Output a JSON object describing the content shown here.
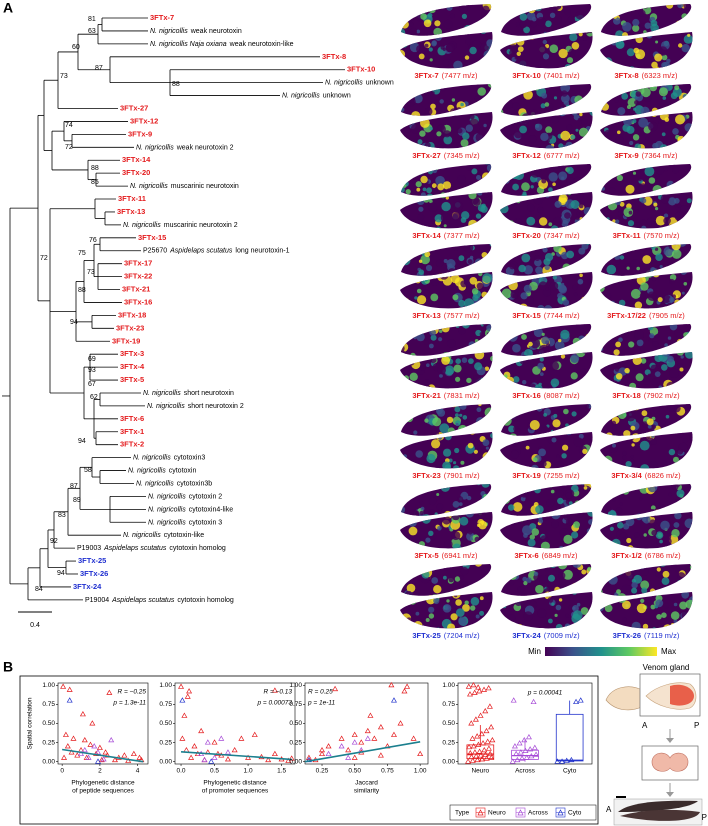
{
  "panel_labels": [
    "A",
    "B"
  ],
  "tree": {
    "scale_bar": 0.4,
    "support_values": [
      81,
      63,
      60,
      73,
      87,
      88,
      74,
      72,
      88,
      85,
      72,
      76,
      75,
      73,
      88,
      94,
      69,
      93,
      67,
      62,
      94,
      58,
      87,
      89,
      83,
      92,
      94,
      84
    ],
    "leaves": [
      {
        "name": "3FTx-7",
        "color": "#e41a1c"
      },
      {
        "species": "N. nigricollis",
        "name": "weak neurotoxin"
      },
      {
        "species": "N. nigricollis Naja oxiana",
        "name": "weak neurotoxin-like"
      },
      {
        "name": "3FTx-8",
        "color": "#e41a1c"
      },
      {
        "name": "3FTx-10",
        "color": "#e41a1c"
      },
      {
        "species": "N. nigricollis",
        "name": "unknown"
      },
      {
        "species": "N. nigricollis",
        "name": "unknown"
      },
      {
        "name": "3FTx-27",
        "color": "#e41a1c"
      },
      {
        "name": "3FTx-12",
        "color": "#e41a1c"
      },
      {
        "name": "3FTx-9",
        "color": "#e41a1c"
      },
      {
        "species": "N. nigricollis",
        "name": "weak neurotoxin 2"
      },
      {
        "name": "3FTx-14",
        "color": "#e41a1c"
      },
      {
        "name": "3FTx-20",
        "color": "#e41a1c"
      },
      {
        "species": "N. nigricollis",
        "name": "muscarinic neurotoxin"
      },
      {
        "name": "3FTx-11",
        "color": "#e41a1c"
      },
      {
        "name": "3FTx-13",
        "color": "#e41a1c"
      },
      {
        "species": "N. nigricollis",
        "name": "muscarinic neurotoxin 2"
      },
      {
        "name": "3FTx-15",
        "color": "#e41a1c"
      },
      {
        "id": "P25670",
        "species": "Aspidelaps scutatus",
        "name": "long neurotoxin-1"
      },
      {
        "name": "3FTx-17",
        "color": "#e41a1c"
      },
      {
        "name": "3FTx-22",
        "color": "#e41a1c"
      },
      {
        "name": "3FTx-21",
        "color": "#e41a1c"
      },
      {
        "name": "3FTx-16",
        "color": "#e41a1c"
      },
      {
        "name": "3FTx-18",
        "color": "#e41a1c"
      },
      {
        "name": "3FTx-23",
        "color": "#e41a1c"
      },
      {
        "name": "3FTx-19",
        "color": "#e41a1c"
      },
      {
        "name": "3FTx-3",
        "color": "#e41a1c"
      },
      {
        "name": "3FTx-4",
        "color": "#e41a1c"
      },
      {
        "name": "3FTx-5",
        "color": "#e41a1c"
      },
      {
        "species": "N. nigricollis",
        "name": "short neurotoxin"
      },
      {
        "species": "N. nigricollis",
        "name": "short neurotoxin 2"
      },
      {
        "name": "3FTx-6",
        "color": "#e41a1c"
      },
      {
        "name": "3FTx-1",
        "color": "#e41a1c"
      },
      {
        "name": "3FTx-2",
        "color": "#e41a1c"
      },
      {
        "species": "N. nigricollis",
        "name": "cytotoxin3"
      },
      {
        "species": "N. nigricollis",
        "name": "cytotoxin"
      },
      {
        "species": "N. nigricollis",
        "name": "cytotoxin3b"
      },
      {
        "species": "N. nigricollis",
        "name": "cytotoxin 2"
      },
      {
        "species": "N. nigricollis",
        "name": "cytotoxin4-like"
      },
      {
        "species": "N. nigricollis",
        "name": "cytotoxin 3"
      },
      {
        "species": "N. nigricollis",
        "name": "cytotoxin-like"
      },
      {
        "id": "P19003",
        "species": "Aspidelaps scutatus",
        "name": "cytotoxin homolog"
      },
      {
        "name": "3FTx-25",
        "color": "#1f2fd0"
      },
      {
        "name": "3FTx-26",
        "color": "#1f2fd0"
      },
      {
        "name": "3FTx-24",
        "color": "#1f2fd0"
      },
      {
        "id": "P19004",
        "species": "Aspidelaps scutatus",
        "name": "cytotoxin homolog"
      }
    ]
  },
  "maps": [
    {
      "name": "3FTx-7",
      "label": "(7477 m/z)",
      "color": "#e41a1c"
    },
    {
      "name": "3FTx-10",
      "label": "(7401 m/z)",
      "color": "#e41a1c"
    },
    {
      "name": "3FTx-8",
      "label": "(6323 m/z)",
      "color": "#e41a1c"
    },
    {
      "name": "3FTx-27",
      "label": "(7345 m/z)",
      "color": "#e41a1c"
    },
    {
      "name": "3FTx-12",
      "label": "(6777 m/z)",
      "color": "#e41a1c"
    },
    {
      "name": "3FTx-9",
      "label": "(7364 m/z)",
      "color": "#e41a1c"
    },
    {
      "name": "3FTx-14",
      "label": "(7377 m/z)",
      "color": "#e41a1c"
    },
    {
      "name": "3FTx-20",
      "label": "(7347 m/z)",
      "color": "#e41a1c"
    },
    {
      "name": "3FTx-11",
      "label": "(7570 m/z)",
      "color": "#e41a1c"
    },
    {
      "name": "3FTx-13",
      "label": "(7577 m/z)",
      "color": "#e41a1c"
    },
    {
      "name": "3FTx-15",
      "label": "(7744 m/z)",
      "color": "#e41a1c"
    },
    {
      "name": "3FTx-17/22",
      "label": "(7905 m/z)",
      "color": "#e41a1c"
    },
    {
      "name": "3FTx-21",
      "label": "(7831 m/z)",
      "color": "#e41a1c"
    },
    {
      "name": "3FTx-16",
      "label": "(8087 m/z)",
      "color": "#e41a1c"
    },
    {
      "name": "3FTx-18",
      "label": "(7902 m/z)",
      "color": "#e41a1c"
    },
    {
      "name": "3FTx-23",
      "label": "(7901 m/z)",
      "color": "#e41a1c"
    },
    {
      "name": "3FTx-19",
      "label": "(7255 m/z)",
      "color": "#e41a1c"
    },
    {
      "name": "3FTx-3/4",
      "label": "(6826 m/z)",
      "color": "#e41a1c"
    },
    {
      "name": "3FTx-5",
      "label": "(6941 m/z)",
      "color": "#e41a1c"
    },
    {
      "name": "3FTx-6",
      "label": "(6849 m/z)",
      "color": "#e41a1c"
    },
    {
      "name": "3FTx-1/2",
      "label": "(6786 m/z)",
      "color": "#e41a1c"
    },
    {
      "name": "3FTx-25",
      "label": "(7204 m/z)",
      "color": "#1f2fd0"
    },
    {
      "name": "3FTx-24",
      "label": "(7009 m/z)",
      "color": "#1f2fd0"
    },
    {
      "name": "3FTx-26",
      "label": "(7119 m/z)",
      "color": "#1f2fd0"
    }
  ],
  "colorbar": {
    "min_label": "Min",
    "max_label": "Max",
    "colors": [
      "#440154",
      "#3b528b",
      "#21918c",
      "#5ec962",
      "#fde725"
    ]
  },
  "inset": {
    "title": "Venom gland",
    "labels": [
      "A",
      "P",
      "A",
      "P"
    ]
  },
  "chart_data": [
    {
      "type": "scatter",
      "x_label": [
        "Phylogenetic distance",
        "of peptide sequences"
      ],
      "y_label": "Spatial correlation",
      "annotations": [
        "R = −0.25",
        "p = 1.3e-11"
      ],
      "xlim": [
        -0.22,
        4.55
      ],
      "ylim": [
        -0.03,
        1.03
      ],
      "xticks": [
        0,
        2,
        4
      ],
      "yticks": [
        {
          "value": 0,
          "label": "0.00"
        },
        0.25,
        {
          "value": 0.5,
          "label": "0.50"
        },
        0.75,
        {
          "value": 1,
          "label": "1.00"
        }
      ],
      "series": [
        {
          "color": "#e41a1c",
          "x": [
            0.05,
            0.1,
            0.2,
            0.3,
            0.5,
            0.6,
            0.8,
            1.0,
            1.2,
            1.3,
            1.5,
            1.6,
            1.8,
            2.0,
            2.1,
            2.3,
            2.5,
            2.8,
            3.0,
            3.3,
            3.5,
            3.8,
            4.1,
            4.2,
            0.4,
            1.1,
            2.4
          ],
          "y": [
            0.98,
            0.05,
            0.35,
            0.2,
            0.12,
            0.3,
            0.08,
            0.15,
            0.28,
            0.05,
            0.22,
            0.5,
            0.1,
            0.18,
            0.02,
            0.12,
            0.9,
            0.02,
            0.05,
            0.08,
            0.01,
            0.1,
            0.05,
            0.02,
            0.94,
            0.62,
            0.08
          ]
        },
        {
          "color": "#a64ad6",
          "x": [
            1.0,
            1.4,
            1.7,
            1.9,
            2.2,
            2.6,
            1.2
          ],
          "y": [
            0.1,
            0.05,
            0.2,
            0.12,
            0.03,
            0.28,
            0.15
          ]
        },
        {
          "color": "#2233cc",
          "x": [
            0.4,
            1.9
          ],
          "y": [
            0.8,
            0.0
          ]
        }
      ],
      "trend": {
        "color": "#1b7f8e",
        "x": [
          0,
          4.3
        ],
        "y": [
          0.16,
          0
        ]
      }
    },
    {
      "type": "scatter",
      "x_label": [
        "Phylogenetic distance",
        "of promoter sequences"
      ],
      "annotations": [
        "R = −0.13",
        "p = 0.00073"
      ],
      "xlim": [
        -0.09,
        1.7
      ],
      "ylim": [
        -0.03,
        1.03
      ],
      "xticks": [
        {
          "value": 0,
          "label": "0.0"
        },
        0.5,
        {
          "value": 1,
          "label": "1.0"
        },
        1.5
      ],
      "yticks": [
        {
          "value": 0,
          "label": "0.00"
        },
        0.25,
        {
          "value": 0.5,
          "label": "0.50"
        },
        0.75,
        {
          "value": 1,
          "label": "1.00"
        }
      ],
      "series": [
        {
          "color": "#e41a1c",
          "x": [
            0.0,
            0.02,
            0.05,
            0.08,
            0.1,
            0.15,
            0.2,
            0.25,
            0.3,
            0.35,
            0.4,
            0.5,
            0.55,
            0.6,
            0.7,
            0.8,
            0.9,
            1.0,
            1.1,
            1.2,
            1.3,
            1.4,
            1.5,
            1.6,
            1.65,
            0.12,
            1.4
          ],
          "y": [
            0.98,
            0.3,
            0.6,
            0.15,
            0.85,
            0.05,
            0.2,
            0.1,
            0.4,
            0.02,
            0.12,
            0.25,
            0.1,
            0.08,
            0.03,
            0.15,
            0.3,
            0.05,
            0.35,
            0.06,
            0.02,
            0.1,
            0.03,
            0.01,
            0.04,
            0.92,
            0.93
          ]
        },
        {
          "color": "#a64ad6",
          "x": [
            0.3,
            0.4,
            0.5,
            0.6,
            0.7,
            0.35
          ],
          "y": [
            0.1,
            0.25,
            0.05,
            0.3,
            0.12,
            0.02
          ]
        },
        {
          "color": "#2233cc",
          "x": [
            0.02,
            0.45
          ],
          "y": [
            0.8,
            0.0
          ]
        }
      ],
      "trend": {
        "color": "#1b7f8e",
        "x": [
          0,
          1.65
        ],
        "y": [
          0.13,
          0.03
        ]
      }
    },
    {
      "type": "scatter",
      "x_label": [
        "Jaccard",
        "similarity"
      ],
      "annotations": [
        "R = 0.25",
        "p = 1e-11"
      ],
      "xlim": [
        0.12,
        1.06
      ],
      "ylim": [
        -0.03,
        1.03
      ],
      "xticks": [
        0.25,
        {
          "value": 0.5,
          "label": "0.50"
        },
        0.75,
        {
          "value": 1,
          "label": "1.00"
        }
      ],
      "yticks": [
        {
          "value": 0,
          "label": "0.00"
        },
        0.25,
        {
          "value": 0.5,
          "label": "0.50"
        },
        0.75,
        {
          "value": 1,
          "label": "1.00"
        }
      ],
      "series": [
        {
          "color": "#e41a1c",
          "x": [
            0.15,
            0.2,
            0.25,
            0.3,
            0.35,
            0.4,
            0.45,
            0.5,
            0.55,
            0.6,
            0.62,
            0.65,
            0.7,
            0.75,
            0.78,
            0.8,
            0.85,
            0.9,
            0.95,
            1.0,
            0.5,
            0.7,
            0.25,
            0.55,
            0.88
          ],
          "y": [
            0.05,
            0.02,
            0.1,
            0.2,
            0.95,
            0.3,
            0.15,
            0.35,
            0.25,
            0.4,
            0.6,
            0.3,
            0.45,
            0.2,
            1.0,
            0.35,
            0.5,
            0.98,
            0.3,
            0.1,
            0.05,
            0.08,
            0.15,
            0.12,
            0.92
          ]
        },
        {
          "color": "#a64ad6",
          "x": [
            0.3,
            0.4,
            0.45,
            0.5,
            0.55,
            0.6
          ],
          "y": [
            0.1,
            0.2,
            0.05,
            0.25,
            0.15,
            0.3
          ]
        },
        {
          "color": "#2233cc",
          "x": [
            0.15,
            0.8
          ],
          "y": [
            0.02,
            0.8
          ]
        }
      ],
      "trend": {
        "color": "#1b7f8e",
        "x": [
          0.12,
          1.0
        ],
        "y": [
          0.0,
          0.26
        ]
      }
    },
    {
      "type": "box",
      "categories": [
        "Neuro",
        "Across",
        "Cyto"
      ],
      "annotations": [
        "p = 0.00041"
      ],
      "legend_title": "Type",
      "ylim": [
        -0.03,
        1.03
      ],
      "yticks": [
        {
          "value": 0,
          "label": "0.00"
        },
        0.25,
        {
          "value": 0.5,
          "label": "0.50"
        },
        0.75,
        {
          "value": 1,
          "label": "1.00"
        }
      ],
      "series": [
        {
          "name": "Neuro",
          "color": "#e41a1c",
          "values": [
            0.0,
            0.01,
            0.02,
            0.03,
            0.04,
            0.05,
            0.06,
            0.07,
            0.08,
            0.09,
            0.1,
            0.11,
            0.12,
            0.13,
            0.15,
            0.17,
            0.19,
            0.2,
            0.22,
            0.24,
            0.26,
            0.28,
            0.3,
            0.33,
            0.36,
            0.4,
            0.45,
            0.5,
            0.55,
            0.6,
            0.66,
            0.72,
            0.88,
            0.9,
            0.92,
            0.94,
            0.96,
            0.98,
            1.0,
            0.97
          ]
        },
        {
          "name": "Across",
          "color": "#a64ad6",
          "values": [
            0.0,
            0.02,
            0.04,
            0.05,
            0.07,
            0.09,
            0.1,
            0.12,
            0.14,
            0.16,
            0.18,
            0.2,
            0.24,
            0.28,
            0.32,
            0.78,
            0.8
          ]
        },
        {
          "name": "Cyto",
          "color": "#2233cc",
          "values": [
            0.0,
            0.0,
            0.01,
            0.02,
            0.78,
            0.8
          ]
        }
      ],
      "boxes": [
        {
          "whisker_low": 0,
          "q1": 0.04,
          "median": 0.1,
          "q3": 0.22,
          "whisker_high": 0.48
        },
        {
          "whisker_low": 0,
          "q1": 0.03,
          "median": 0.08,
          "q3": 0.15,
          "whisker_high": 0.3
        },
        {
          "whisker_low": 0,
          "q1": 0.01,
          "median": 0.02,
          "q3": 0.62,
          "whisker_high": 0.8
        }
      ]
    }
  ]
}
